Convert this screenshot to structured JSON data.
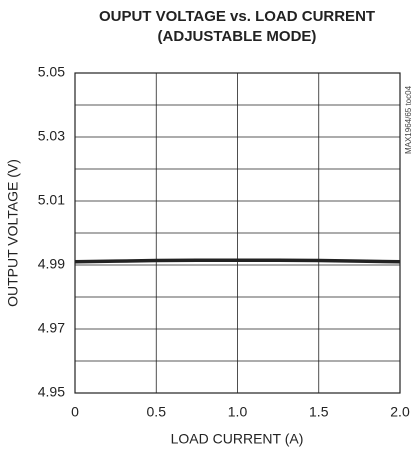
{
  "chart_data": {
    "type": "line",
    "title": "OUPUT VOLTAGE vs. LOAD CURRENT",
    "subtitle": "(ADJUSTABLE MODE)",
    "x_label": "LOAD CURRENT (A)",
    "y_label": "OUTPUT VOLTAGE (V)",
    "annotation": "MAX1964/65 toc04",
    "x": [
      0,
      0.25,
      0.5,
      0.75,
      1.0,
      1.25,
      1.5,
      1.75,
      2.0
    ],
    "series": [
      {
        "color": "#222222",
        "values": [
          4.991,
          4.9912,
          4.9914,
          4.9915,
          4.9915,
          4.9915,
          4.9914,
          4.9912,
          4.991
        ]
      }
    ],
    "xlim": [
      0,
      2
    ],
    "xticks": [
      0,
      0.5,
      {
        "value": 1,
        "label": "1.0"
      },
      1.5,
      {
        "value": 2,
        "label": "2.0"
      }
    ],
    "ylim": [
      4.95,
      5.05
    ],
    "yticks": [
      4.95,
      4.97,
      4.99,
      5.01,
      5.03,
      5.05
    ],
    "yminor": [
      4.96,
      4.98,
      5.0,
      5.02,
      5.04
    ],
    "grid": true
  }
}
